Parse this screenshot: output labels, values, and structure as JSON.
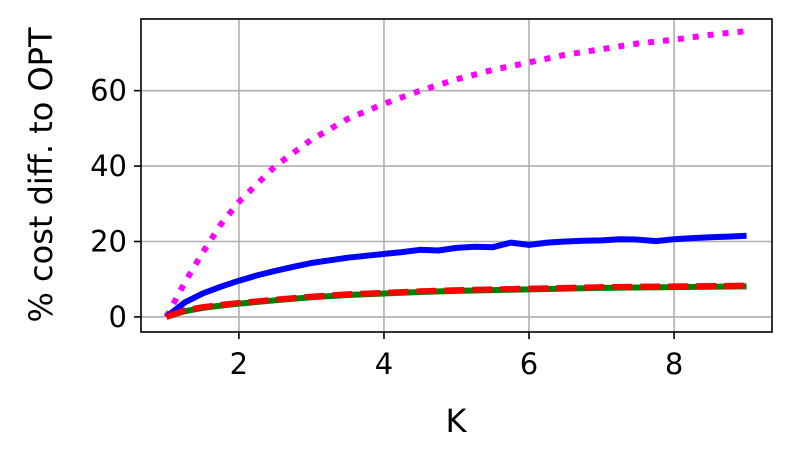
{
  "chart_data": {
    "type": "line",
    "xlabel": "K",
    "ylabel": "% cost diff. to OPT",
    "xlim": [
      0.65,
      9.35
    ],
    "ylim": [
      -4,
      79
    ],
    "xticks": [
      2,
      4,
      6,
      8
    ],
    "yticks": [
      0,
      20,
      40,
      60
    ],
    "grid": true,
    "series": [
      {
        "color": "#ff00ff",
        "style": "dotted",
        "x": [
          1.0,
          1.25,
          1.5,
          1.75,
          2.0,
          2.5,
          3.0,
          3.5,
          4.0,
          4.5,
          5.0,
          5.5,
          6.0,
          6.5,
          7.0,
          7.5,
          8.0,
          8.5,
          9.0
        ],
        "y": [
          0,
          9,
          17,
          24.5,
          30.5,
          40,
          47,
          52.5,
          56.5,
          60,
          63,
          65.5,
          67.5,
          69.5,
          71,
          72.5,
          73.5,
          74.8,
          75.8
        ]
      },
      {
        "color": "#0000ff",
        "style": "solid",
        "x": [
          1.0,
          1.25,
          1.5,
          1.75,
          2.0,
          2.25,
          2.5,
          2.75,
          3.0,
          3.25,
          3.5,
          3.75,
          4.0,
          4.25,
          4.5,
          4.75,
          5.0,
          5.25,
          5.5,
          5.75,
          6.0,
          6.25,
          6.5,
          6.75,
          7.0,
          7.25,
          7.5,
          7.75,
          8.0,
          8.25,
          8.5,
          8.75,
          9.0
        ],
        "y": [
          0,
          3.8,
          6.2,
          8,
          9.6,
          11,
          12.2,
          13.3,
          14.3,
          15,
          15.7,
          16.2,
          16.7,
          17.2,
          17.8,
          17.6,
          18.3,
          18.6,
          18.5,
          19.7,
          19.1,
          19.7,
          20.0,
          20.2,
          20.3,
          20.6,
          20.5,
          20.1,
          20.6,
          20.9,
          21.1,
          21.3,
          21.5
        ]
      },
      {
        "color": "#008000",
        "style": "solid",
        "x": [
          1.0,
          1.25,
          1.5,
          1.75,
          2.0,
          2.5,
          3.0,
          3.5,
          4.0,
          4.5,
          5.0,
          5.5,
          6.0,
          6.5,
          7.0,
          7.5,
          8.0,
          8.5,
          9.0
        ],
        "y": [
          0,
          1.5,
          2.4,
          3.0,
          3.5,
          4.4,
          5.2,
          5.8,
          6.2,
          6.6,
          6.9,
          7.1,
          7.3,
          7.5,
          7.7,
          7.8,
          7.9,
          8.0,
          8.1
        ]
      },
      {
        "color": "#ff0000",
        "style": "dashed",
        "x": [
          1.0,
          1.25,
          1.5,
          1.75,
          2.0,
          2.5,
          3.0,
          3.5,
          4.0,
          4.5,
          5.0,
          5.5,
          6.0,
          6.5,
          7.0,
          7.5,
          8.0,
          8.5,
          9.0
        ],
        "y": [
          0,
          1.7,
          2.6,
          3.2,
          3.7,
          4.6,
          5.4,
          6.0,
          6.4,
          6.8,
          7.1,
          7.3,
          7.5,
          7.7,
          7.9,
          8.0,
          8.1,
          8.2,
          8.3
        ]
      }
    ]
  }
}
